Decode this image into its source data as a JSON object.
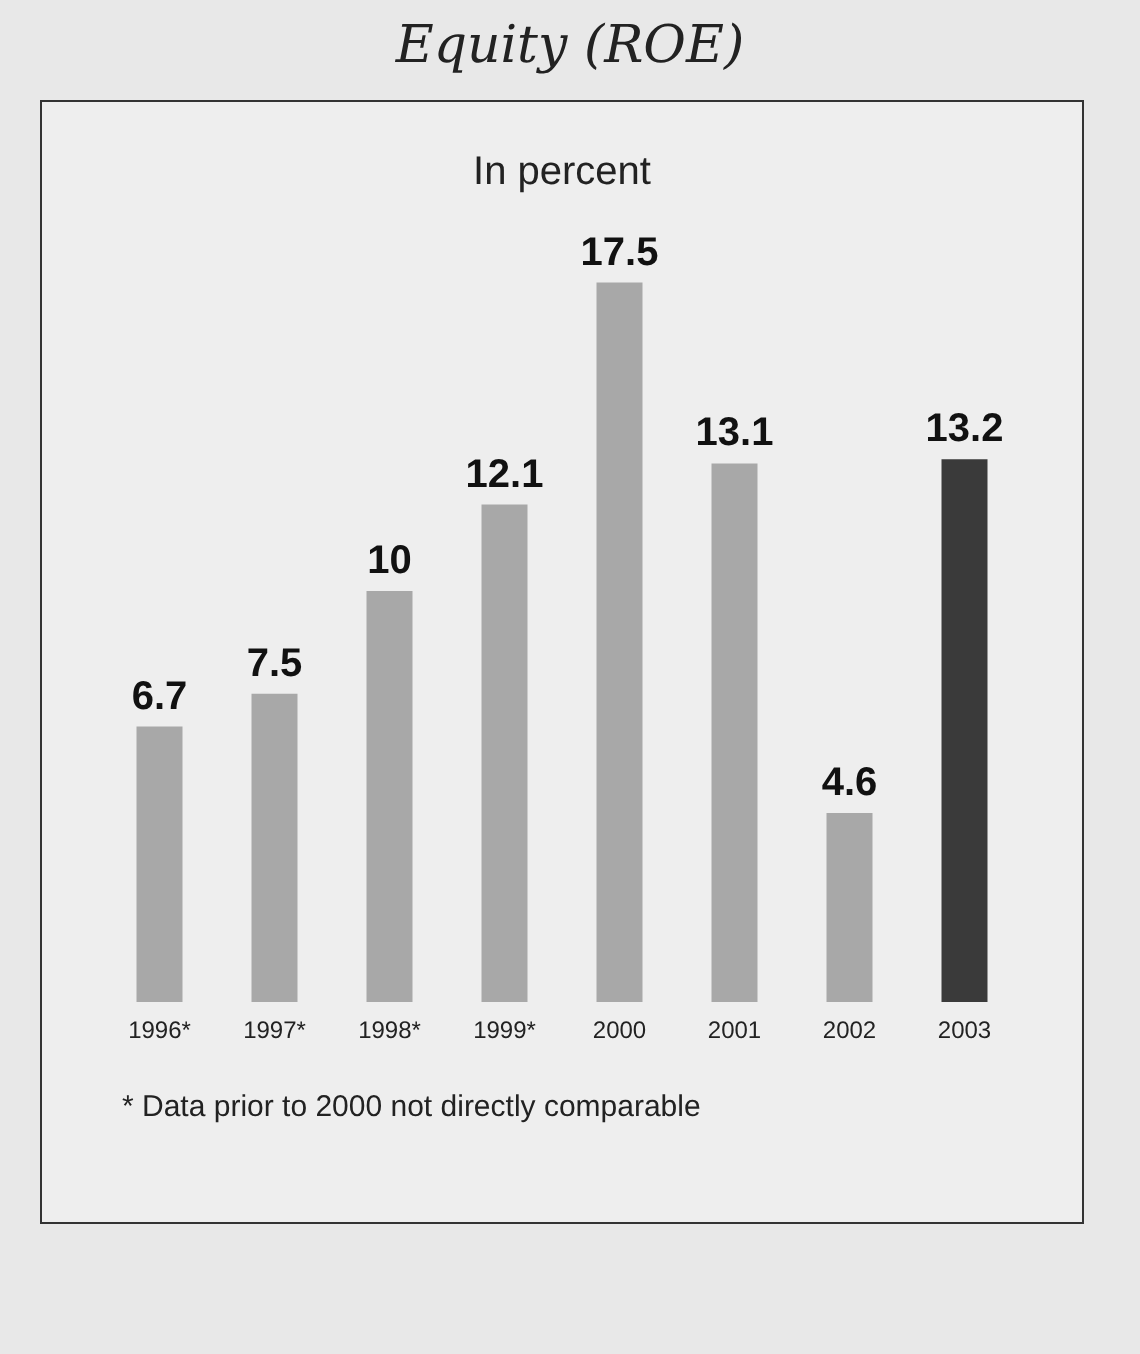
{
  "chart_data": {
    "type": "bar",
    "title": "Equity (ROE)",
    "subtitle": "In percent",
    "categories": [
      "1996*",
      "1997*",
      "1998*",
      "1999*",
      "2000",
      "2001",
      "2002",
      "2003"
    ],
    "values": [
      6.7,
      7.5,
      10,
      12.1,
      17.5,
      13.1,
      4.6,
      13.2
    ],
    "colors": [
      "#a8a8a8",
      "#a8a8a8",
      "#a8a8a8",
      "#a8a8a8",
      "#a8a8a8",
      "#a8a8a8",
      "#a8a8a8",
      "#3a3a3a"
    ],
    "data_labels": true,
    "annotations": [
      "* Data prior to 2000 not directly comparable"
    ]
  }
}
